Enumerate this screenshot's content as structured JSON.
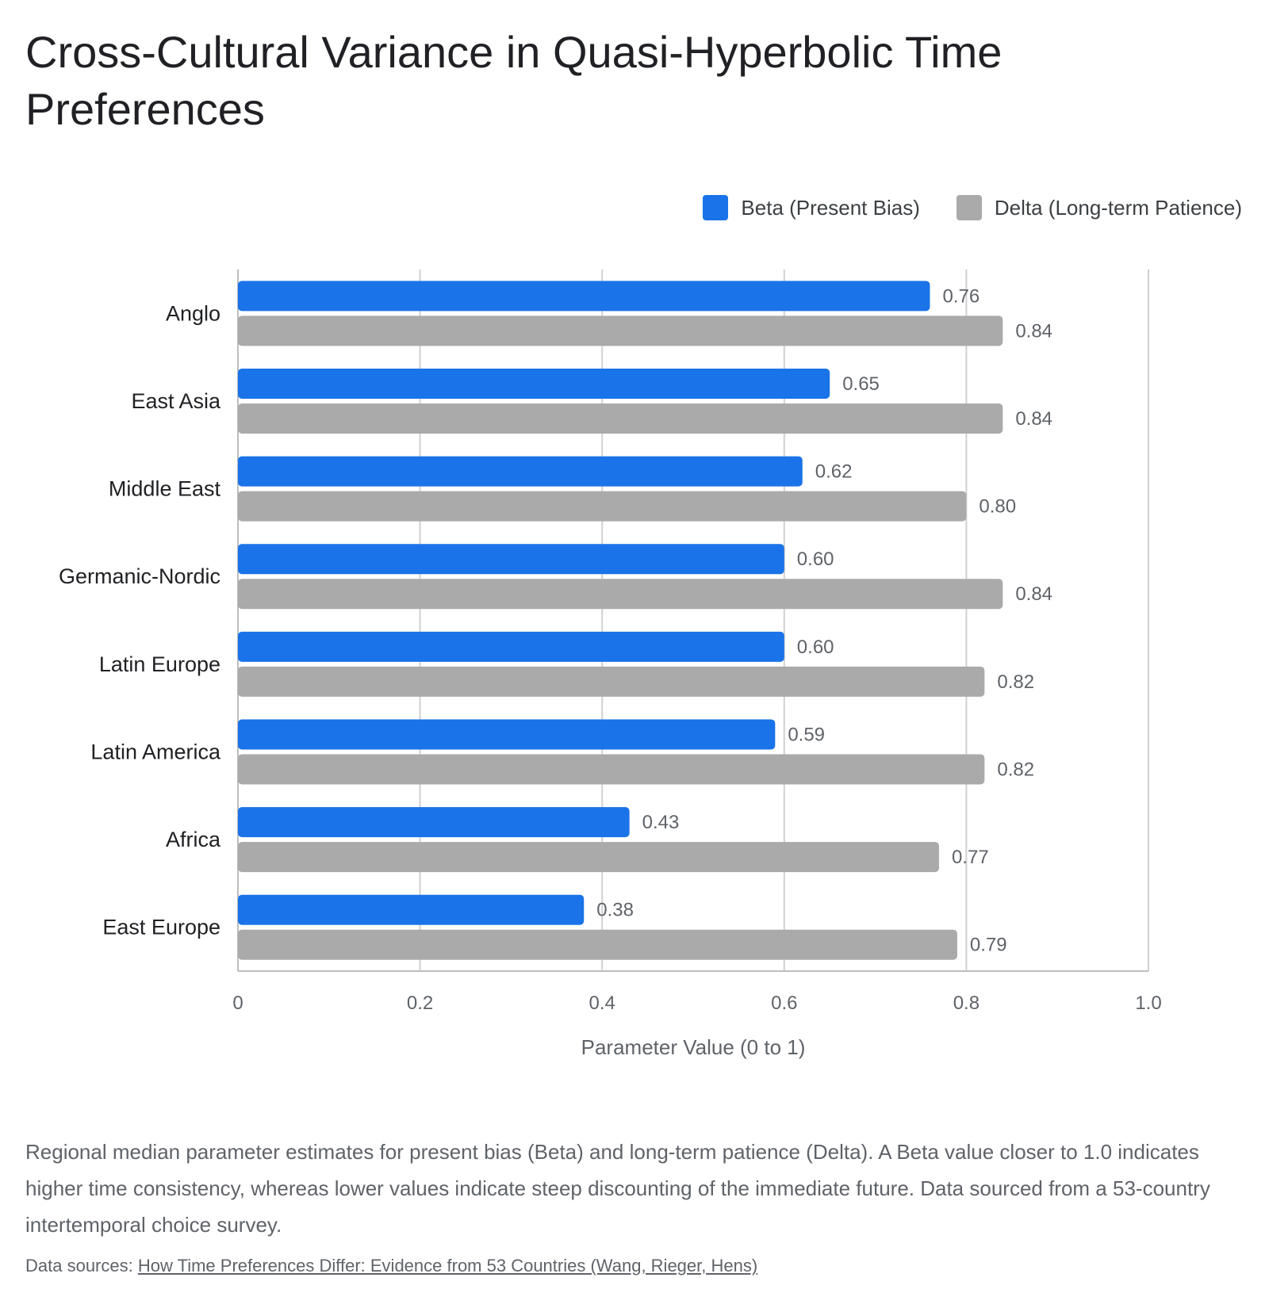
{
  "page": {
    "title": "Cross-Cultural Variance in Quasi-Hyperbolic Time Preferences",
    "description": "Regional median parameter estimates for present bias (Beta) and long-term patience (Delta). A Beta value closer to 1.0 indicates higher time consistency, whereas lower values indicate steep discounting of the immediate future. Data sourced from a 53-country intertemporal choice survey.",
    "sources_label": "Data sources:",
    "sources_link": "How Time Preferences Differ: Evidence from 53 Countries (Wang, Rieger, Hens)"
  },
  "chart_data": {
    "type": "bar",
    "orientation": "horizontal",
    "title": "Cross-Cultural Variance in Quasi-Hyperbolic Time Preferences",
    "xlabel": "Parameter Value (0 to 1)",
    "ylabel": "",
    "xlim": [
      0,
      1.0
    ],
    "xticks": [
      "0",
      "0.2",
      "0.4",
      "0.6",
      "0.8",
      "1.0"
    ],
    "grid": true,
    "legend_position": "top-right",
    "categories": [
      "Anglo",
      "East Asia",
      "Middle East",
      "Germanic-Nordic",
      "Latin Europe",
      "Latin America",
      "Africa",
      "East Europe"
    ],
    "series": [
      {
        "name": "Beta (Present Bias)",
        "color": "#1a73e8",
        "values": [
          0.76,
          0.65,
          0.62,
          0.6,
          0.6,
          0.59,
          0.43,
          0.38
        ],
        "labels": [
          "0.76",
          "0.65",
          "0.62",
          "0.60",
          "0.60",
          "0.59",
          "0.43",
          "0.38"
        ]
      },
      {
        "name": "Delta (Long-term Patience)",
        "color": "#aaaaaa",
        "values": [
          0.84,
          0.84,
          0.8,
          0.84,
          0.82,
          0.82,
          0.77,
          0.79
        ],
        "labels": [
          "0.84",
          "0.84",
          "0.80",
          "0.84",
          "0.82",
          "0.82",
          "0.77",
          "0.79"
        ]
      }
    ]
  }
}
